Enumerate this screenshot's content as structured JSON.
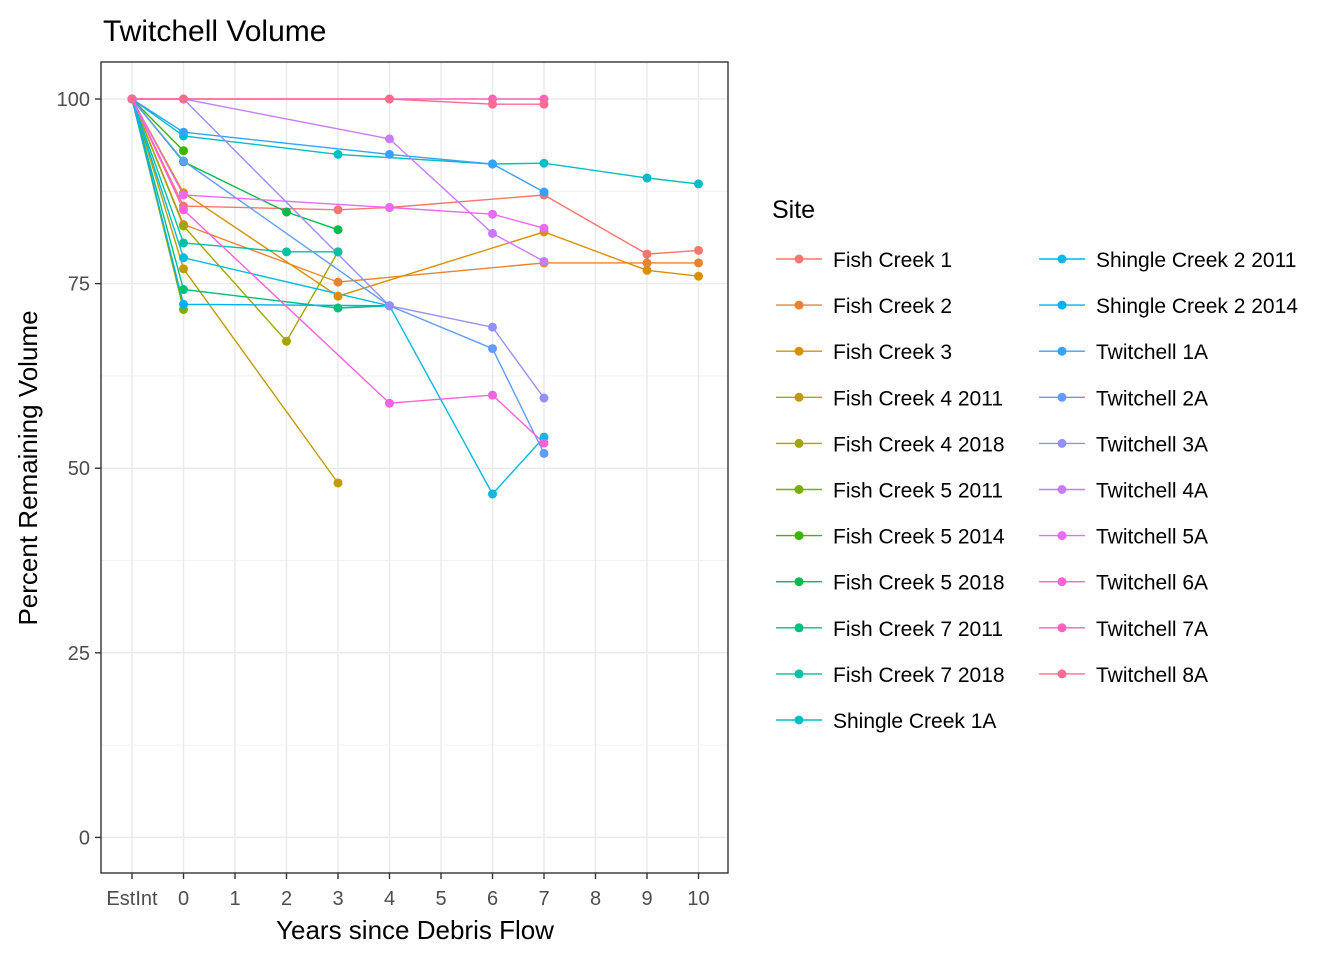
{
  "chart_data": {
    "type": "line",
    "title": "Twitchell Volume",
    "xlabel": "Years since Debris Flow",
    "ylabel": "Percent Remaining Volume",
    "x_categories": [
      "EstInt",
      "0",
      "1",
      "2",
      "3",
      "4",
      "5",
      "6",
      "7",
      "8",
      "9",
      "10"
    ],
    "yticks": [
      0,
      25,
      50,
      75,
      100
    ],
    "ylim": [
      -5,
      105
    ],
    "grid": true,
    "legend_title": "Site",
    "legend_position": "right",
    "series": [
      {
        "name": "Fish Creek 1",
        "color": "#F8766D",
        "points": [
          [
            "EstInt",
            100
          ],
          [
            "0",
            85.5
          ],
          [
            "3",
            85
          ],
          [
            "4",
            85.3
          ],
          [
            "7",
            87
          ],
          [
            "9",
            79
          ],
          [
            "10",
            79.5
          ]
        ]
      },
      {
        "name": "Fish Creek 2",
        "color": "#EA8331",
        "points": [
          [
            "EstInt",
            100
          ],
          [
            "0",
            83
          ],
          [
            "3",
            75.2
          ],
          [
            "7",
            77.8
          ],
          [
            "9",
            77.8
          ],
          [
            "10",
            77.8
          ]
        ]
      },
      {
        "name": "Fish Creek 3",
        "color": "#D89000",
        "points": [
          [
            "EstInt",
            100
          ],
          [
            "0",
            87.3
          ],
          [
            "3",
            73.3
          ],
          [
            "7",
            82
          ],
          [
            "9",
            76.8
          ],
          [
            "10",
            76
          ]
        ]
      },
      {
        "name": "Fish Creek 4 2011",
        "color": "#C09B00",
        "points": [
          [
            "EstInt",
            100
          ],
          [
            "0",
            77
          ],
          [
            "3",
            48
          ]
        ]
      },
      {
        "name": "Fish Creek 4 2018",
        "color": "#A3A500",
        "points": [
          [
            "EstInt",
            100
          ],
          [
            "0",
            82.8
          ],
          [
            "2",
            67.2
          ],
          [
            "3",
            79.3
          ]
        ]
      },
      {
        "name": "Fish Creek 5 2011",
        "color": "#7CAE00",
        "points": [
          [
            "EstInt",
            100
          ],
          [
            "0",
            71.5
          ]
        ]
      },
      {
        "name": "Fish Creek 5 2014",
        "color": "#39B600",
        "points": [
          [
            "EstInt",
            100
          ],
          [
            "0",
            93
          ]
        ]
      },
      {
        "name": "Fish Creek 5 2018",
        "color": "#00BB4E",
        "points": [
          [
            "EstInt",
            100
          ],
          [
            "0",
            91.5
          ],
          [
            "2",
            84.7
          ],
          [
            "3",
            82.3
          ]
        ]
      },
      {
        "name": "Fish Creek 7 2011",
        "color": "#00BF7D",
        "points": [
          [
            "EstInt",
            100
          ],
          [
            "0",
            74.2
          ],
          [
            "3",
            71.7
          ],
          [
            "4",
            72
          ]
        ]
      },
      {
        "name": "Fish Creek 7 2018",
        "color": "#00C1A3",
        "points": [
          [
            "EstInt",
            100
          ],
          [
            "0",
            80.5
          ],
          [
            "2",
            79.3
          ],
          [
            "3",
            79.3
          ]
        ]
      },
      {
        "name": "Shingle Creek 1A",
        "color": "#00BFC4",
        "points": [
          [
            "EstInt",
            100
          ],
          [
            "0",
            95
          ],
          [
            "3",
            92.5
          ],
          [
            "6",
            91.2
          ],
          [
            "7",
            91.3
          ],
          [
            "9",
            89.3
          ],
          [
            "10",
            88.5
          ]
        ]
      },
      {
        "name": "Shingle Creek 2 2011",
        "color": "#00BAE0",
        "points": [
          [
            "EstInt",
            100
          ],
          [
            "0",
            78.5
          ],
          [
            "4",
            72
          ],
          [
            "6",
            46.5
          ],
          [
            "7",
            54.2
          ]
        ]
      },
      {
        "name": "Shingle Creek 2 2014",
        "color": "#00B0F6",
        "points": [
          [
            "EstInt",
            100
          ],
          [
            "0",
            72.2
          ],
          [
            "4",
            72
          ]
        ]
      },
      {
        "name": "Twitchell 1A",
        "color": "#35A2FF",
        "points": [
          [
            "EstInt",
            100
          ],
          [
            "0",
            95.5
          ],
          [
            "4",
            92.5
          ],
          [
            "6",
            91.2
          ],
          [
            "7",
            87.4
          ]
        ]
      },
      {
        "name": "Twitchell 2A",
        "color": "#9590FF",
        "points": [
          [
            "EstInt",
            100
          ],
          [
            "0",
            91.6
          ],
          [
            "4",
            72
          ],
          [
            "6",
            66.2
          ],
          [
            "7",
            52
          ]
        ],
        "display_color": "#619CFF"
      },
      {
        "name": "Twitchell 3A",
        "color": "#9590FF",
        "points": [
          [
            "EstInt",
            100
          ],
          [
            "0",
            100
          ],
          [
            "4",
            72
          ],
          [
            "6",
            69.1
          ],
          [
            "7",
            59.5
          ]
        ]
      },
      {
        "name": "Twitchell 4A",
        "color": "#C77CFF",
        "points": [
          [
            "EstInt",
            100
          ],
          [
            "0",
            100
          ],
          [
            "4",
            94.6
          ],
          [
            "6",
            81.8
          ],
          [
            "7",
            78
          ]
        ]
      },
      {
        "name": "Twitchell 5A",
        "color": "#E76BF3",
        "points": [
          [
            "EstInt",
            100
          ],
          [
            "0",
            87
          ],
          [
            "4",
            85.3
          ],
          [
            "6",
            84.4
          ],
          [
            "7",
            82.5
          ]
        ]
      },
      {
        "name": "Twitchell 6A",
        "color": "#FA62DB",
        "points": [
          [
            "EstInt",
            100
          ],
          [
            "0",
            85
          ],
          [
            "4",
            58.8
          ],
          [
            "6",
            59.9
          ],
          [
            "7",
            53.4
          ]
        ]
      },
      {
        "name": "Twitchell 7A",
        "color": "#FF62BC",
        "points": [
          [
            "EstInt",
            100
          ],
          [
            "0",
            100
          ],
          [
            "4",
            100
          ],
          [
            "6",
            100
          ],
          [
            "7",
            100
          ]
        ]
      },
      {
        "name": "Twitchell 8A",
        "color": "#FF6C91",
        "points": [
          [
            "EstInt",
            100
          ],
          [
            "0",
            100
          ],
          [
            "4",
            100
          ],
          [
            "6",
            99.3
          ],
          [
            "7",
            99.3
          ]
        ]
      }
    ]
  }
}
